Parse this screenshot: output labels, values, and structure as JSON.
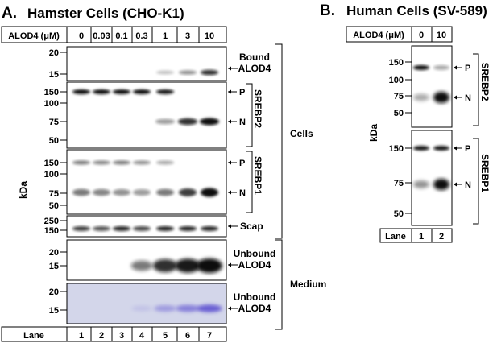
{
  "panel_a": {
    "letter": "A.",
    "title": "Hamster Cells (CHO-K1)",
    "header_label": "ALOD4 (μM)",
    "concentrations": [
      "0",
      "0.03",
      "0.1",
      "0.3",
      "1",
      "3",
      "10"
    ],
    "ylabel": "kDa",
    "cells_label": "Cells",
    "medium_label": "Medium",
    "lane_label": "Lane",
    "lanes": [
      "1",
      "2",
      "3",
      "4",
      "5",
      "6",
      "7"
    ],
    "blots": [
      {
        "ticks": [
          "20",
          "15"
        ],
        "labels": [
          "Bound",
          "ALOD4"
        ]
      },
      {
        "ticks": [
          "150",
          "100",
          "75",
          "50"
        ],
        "vertical": "SREBP2",
        "p": "P",
        "n": "N"
      },
      {
        "ticks": [
          "150",
          "100",
          "75",
          "50"
        ],
        "vertical": "SREBP1",
        "p": "P",
        "n": "N"
      },
      {
        "ticks": [
          "250",
          "150"
        ],
        "labels": [
          "Scap"
        ]
      },
      {
        "ticks": [
          "20",
          "15"
        ],
        "labels": [
          "Unbound",
          "ALOD4"
        ]
      },
      {
        "ticks": [
          "20",
          "15"
        ],
        "labels": [
          "Unbound",
          "ALOD4"
        ]
      }
    ]
  },
  "panel_b": {
    "letter": "B.",
    "title": "Human Cells (SV-589)",
    "header_label": "ALOD4 (μM)",
    "concentrations": [
      "0",
      "10"
    ],
    "ylabel": "kDa",
    "lane_label": "Lane",
    "lanes": [
      "1",
      "2"
    ],
    "blots": [
      {
        "ticks": [
          "150",
          "100",
          "75",
          "50"
        ],
        "vertical": "SREBP2",
        "p": "P",
        "n": "N"
      },
      {
        "ticks": [
          "150",
          "75",
          "50"
        ],
        "vertical": "SREBP1",
        "p": "P",
        "n": "N"
      }
    ]
  },
  "colors": {
    "band": "#111111",
    "coomassie_bg": "#d3d6ea",
    "coomassie_band": "#5b4fd0"
  }
}
